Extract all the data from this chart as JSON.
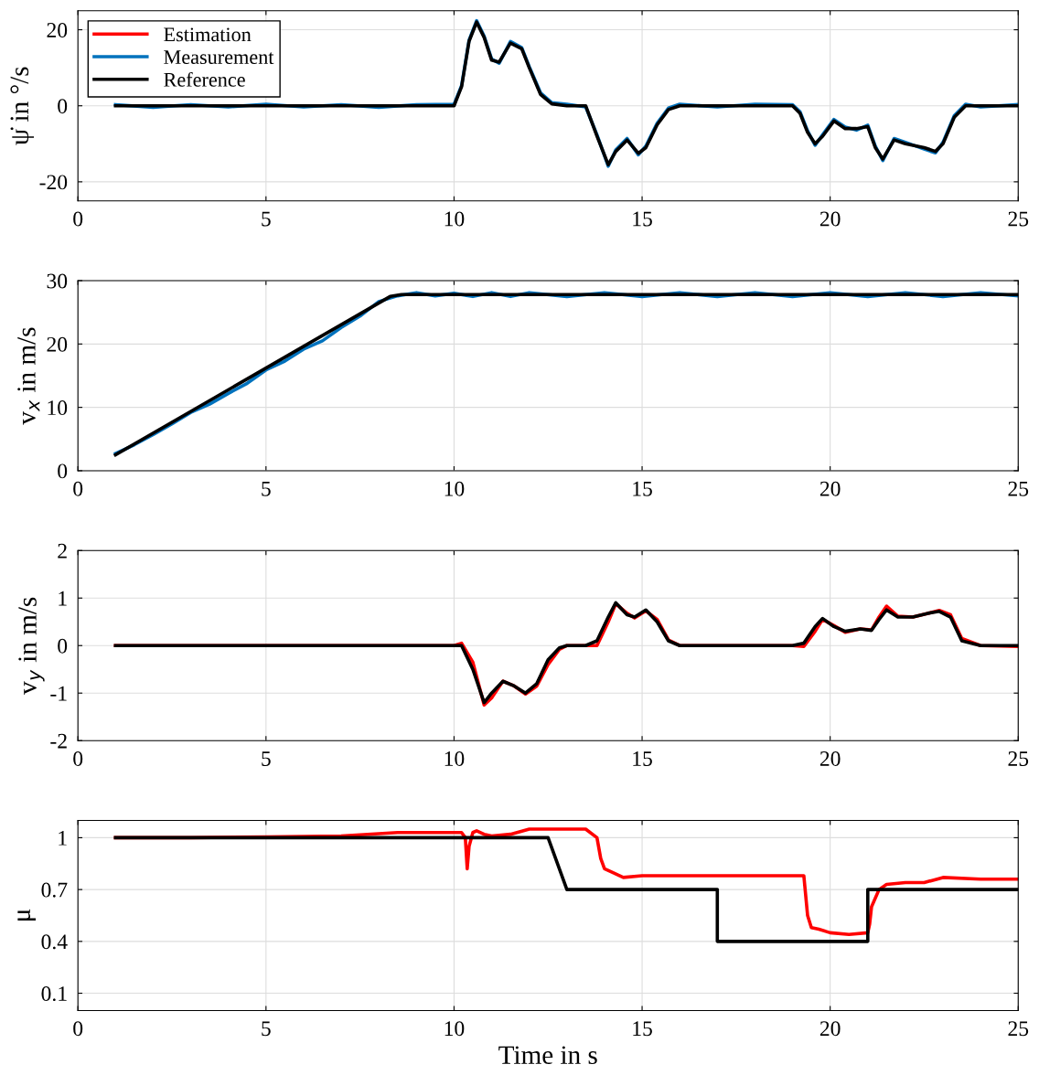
{
  "chart_data": [
    {
      "type": "line",
      "ylabel": "ψ̇ in °/s",
      "xlim": [
        0,
        25
      ],
      "xticks": [
        0,
        5,
        10,
        15,
        20,
        25
      ],
      "ylim": [
        -25,
        25
      ],
      "yticks": [
        -20,
        0,
        20
      ],
      "grid": true,
      "legend": "top left",
      "x": [
        1,
        2,
        3,
        4,
        5,
        6,
        7,
        8,
        9,
        10,
        10.2,
        10.4,
        10.6,
        10.8,
        11,
        11.2,
        11.5,
        11.8,
        12,
        12.3,
        12.6,
        13,
        13.5,
        13.8,
        14.1,
        14.3,
        14.6,
        14.9,
        15.1,
        15.4,
        15.7,
        16,
        17,
        18,
        19,
        19.2,
        19.4,
        19.6,
        19.8,
        20.1,
        20.4,
        20.7,
        21,
        21.2,
        21.4,
        21.7,
        22,
        22.5,
        22.8,
        23,
        23.3,
        23.6,
        24,
        25
      ],
      "series": [
        {
          "name": "Estimation",
          "color": "#ff0000",
          "values": [
            null,
            null,
            null,
            null,
            null,
            null,
            null,
            null,
            null,
            null,
            null,
            null,
            null,
            null,
            null,
            null,
            null,
            null,
            null,
            null,
            null,
            null,
            null,
            null,
            null,
            null,
            null,
            null,
            null,
            null,
            null,
            null,
            null,
            null,
            null,
            null,
            null,
            null,
            null,
            null,
            null,
            null,
            null,
            null,
            null,
            null,
            null,
            null,
            null,
            null,
            null,
            null,
            null,
            null
          ]
        },
        {
          "name": "Measurement",
          "color": "#0072bd",
          "values": [
            0.3,
            -0.4,
            0.3,
            -0.3,
            0.4,
            -0.3,
            0.3,
            -0.4,
            0.3,
            0.4,
            5.3,
            17.3,
            22.4,
            18.3,
            12.3,
            11.2,
            16.9,
            15.3,
            10.3,
            3.4,
            0.8,
            0.4,
            -0.3,
            -7.6,
            -15.9,
            -11.6,
            -8.6,
            -12.9,
            -10.6,
            -4.6,
            -0.6,
            0.4,
            -0.3,
            0.4,
            0.3,
            -1.6,
            -6.6,
            -10.4,
            -7.6,
            -3.6,
            -5.6,
            -6.4,
            -5.1,
            -10.6,
            -14.4,
            -8.6,
            -9.6,
            -11.4,
            -12.4,
            -9.6,
            -2.6,
            0.4,
            -0.3,
            0.3
          ]
        },
        {
          "name": "Reference",
          "color": "#000000",
          "values": [
            0,
            0,
            0,
            0,
            0,
            0,
            0,
            0,
            0,
            0,
            5,
            17,
            22,
            18,
            12,
            11.5,
            16.5,
            15,
            10,
            3,
            0.5,
            0,
            0,
            -8,
            -15.5,
            -12,
            -9,
            -12.5,
            -11,
            -5,
            -1,
            0,
            0,
            0,
            0,
            -2,
            -7,
            -10,
            -8,
            -4,
            -6,
            -6,
            -5.5,
            -11,
            -14,
            -9,
            -10,
            -11,
            -12,
            -10,
            -3,
            0,
            0,
            0
          ]
        }
      ]
    },
    {
      "type": "line",
      "ylabel": "v$_{x}$ in m/s",
      "xlim": [
        0,
        25
      ],
      "xticks": [
        0,
        5,
        10,
        15,
        20,
        25
      ],
      "ylim": [
        0,
        30
      ],
      "yticks": [
        0,
        10,
        20,
        30
      ],
      "grid": true,
      "series": [
        {
          "color": "#0072bd",
          "x": [
            1,
            1.5,
            2,
            2.5,
            3,
            3.5,
            4,
            4.5,
            5,
            5.5,
            6,
            6.5,
            7,
            7.5,
            8,
            8.5,
            9,
            9.5,
            10,
            10.5,
            11,
            11.5,
            12,
            13,
            14,
            15,
            16,
            17,
            18,
            19,
            20,
            21,
            22,
            23,
            24,
            25
          ],
          "values": [
            2.7,
            4.1,
            5.7,
            7.4,
            9.2,
            10.5,
            12.2,
            13.8,
            15.9,
            17.3,
            19.2,
            20.5,
            22.6,
            24.4,
            26.7,
            27.6,
            28.1,
            27.6,
            28,
            27.5,
            28.1,
            27.5,
            28.1,
            27.5,
            28.1,
            27.5,
            28.1,
            27.5,
            28.1,
            27.5,
            28.1,
            27.5,
            28.1,
            27.5,
            28.1,
            27.6
          ]
        },
        {
          "color": "#000000",
          "x": [
            1,
            8.3,
            8.6,
            25
          ],
          "values": [
            2.5,
            27.5,
            27.8,
            27.8
          ]
        }
      ]
    },
    {
      "type": "line",
      "ylabel": "v$_{y}$ in m/s",
      "xlim": [
        0,
        25
      ],
      "xticks": [
        0,
        5,
        10,
        15,
        20,
        25
      ],
      "ylim": [
        -2,
        2
      ],
      "yticks": [
        -2,
        -1,
        0,
        1,
        2
      ],
      "grid": true,
      "x": [
        1,
        10,
        10.2,
        10.5,
        10.8,
        11,
        11.3,
        11.6,
        11.9,
        12.2,
        12.5,
        12.8,
        13,
        13.5,
        13.8,
        14.1,
        14.3,
        14.6,
        14.8,
        15.1,
        15.4,
        15.7,
        16,
        19,
        19.3,
        19.6,
        19.8,
        20.1,
        20.4,
        20.8,
        21.1,
        21.3,
        21.5,
        21.8,
        22.2,
        22.6,
        22.9,
        23.2,
        23.5,
        24,
        25
      ],
      "series": [
        {
          "color": "#ff0000",
          "values": [
            0,
            0,
            0.05,
            -0.35,
            -1.25,
            -1.1,
            -0.75,
            -0.85,
            -1.02,
            -0.85,
            -0.4,
            -0.08,
            0,
            0,
            0,
            0.5,
            0.88,
            0.68,
            0.58,
            0.73,
            0.55,
            0.12,
            0,
            0,
            -0.02,
            0.3,
            0.55,
            0.42,
            0.28,
            0.35,
            0.33,
            0.6,
            0.83,
            0.62,
            0.6,
            0.68,
            0.74,
            0.65,
            0.15,
            0,
            -0.02
          ]
        },
        {
          "color": "#000000",
          "values": [
            0,
            0,
            0,
            -0.5,
            -1.2,
            -1,
            -0.75,
            -0.85,
            -1,
            -0.8,
            -0.3,
            -0.05,
            0,
            0,
            0.1,
            0.6,
            0.9,
            0.65,
            0.6,
            0.75,
            0.5,
            0.1,
            0,
            0,
            0.05,
            0.4,
            0.57,
            0.4,
            0.3,
            0.35,
            0.32,
            0.55,
            0.75,
            0.6,
            0.6,
            0.68,
            0.72,
            0.6,
            0.1,
            0,
            0
          ]
        }
      ]
    },
    {
      "type": "line",
      "ylabel": "μ",
      "xlabel": "Time in s",
      "xlim": [
        0,
        25
      ],
      "xticks": [
        0,
        5,
        10,
        15,
        20,
        25
      ],
      "ylim": [
        0,
        1.1
      ],
      "yticks": [
        0.1,
        0.4,
        0.7,
        1
      ],
      "grid": true,
      "series": [
        {
          "color": "#ff0000",
          "x": [
            1,
            3,
            5,
            7,
            8.5,
            10.2,
            10.3,
            10.35,
            10.4,
            10.5,
            10.6,
            10.8,
            11,
            11.5,
            12,
            12.5,
            13.5,
            13.8,
            13.9,
            14,
            14.2,
            14.5,
            15,
            16,
            17,
            18,
            19.3,
            19.4,
            19.5,
            19.7,
            20,
            20.5,
            21,
            21.05,
            21.1,
            21.3,
            21.5,
            22,
            22.5,
            23,
            24,
            25
          ],
          "values": [
            1,
            1,
            1.005,
            1.01,
            1.03,
            1.03,
            1,
            0.82,
            0.95,
            1.03,
            1.04,
            1.02,
            1.01,
            1.02,
            1.05,
            1.05,
            1.05,
            1,
            0.88,
            0.82,
            0.8,
            0.77,
            0.78,
            0.78,
            0.78,
            0.78,
            0.78,
            0.55,
            0.48,
            0.47,
            0.45,
            0.44,
            0.45,
            0.5,
            0.6,
            0.7,
            0.73,
            0.74,
            0.74,
            0.77,
            0.76,
            0.76
          ]
        },
        {
          "color": "#000000",
          "x": [
            1,
            12.5,
            13,
            17,
            17,
            21,
            21,
            25
          ],
          "values": [
            1,
            1,
            0.7,
            0.7,
            0.4,
            0.4,
            0.7,
            0.7
          ]
        }
      ]
    }
  ]
}
